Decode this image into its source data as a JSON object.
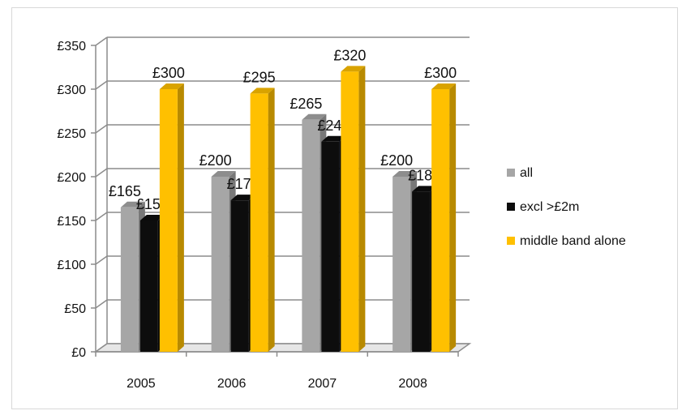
{
  "chart_data": {
    "type": "bar",
    "categories": [
      "2005",
      "2006",
      "2007",
      "2008"
    ],
    "series": [
      {
        "name": "all",
        "values": [
          165,
          200,
          265,
          200
        ],
        "labels": [
          "£165",
          "£200",
          "£265",
          "£200"
        ],
        "color": "#a6a6a6"
      },
      {
        "name": "excl >£2m",
        "values": [
          150,
          173,
          240,
          183
        ],
        "labels": [
          "£150",
          "£173",
          "£240",
          "£183"
        ],
        "color": "#0d0d0d"
      },
      {
        "name": "middle band alone",
        "values": [
          300,
          295,
          320,
          300
        ],
        "labels": [
          "£300",
          "£295",
          "£320",
          "£300"
        ],
        "color": "#ffc000"
      }
    ],
    "yticks": [
      "£0",
      "£50",
      "£100",
      "£150",
      "£200",
      "£250",
      "£300",
      "£350"
    ],
    "ytick_values": [
      0,
      50,
      100,
      150,
      200,
      250,
      300,
      350
    ],
    "ylim": [
      0,
      350
    ],
    "grid": true,
    "legend": "right",
    "style": "3d-clustered-column",
    "title": "",
    "xlabel": "",
    "ylabel": ""
  }
}
